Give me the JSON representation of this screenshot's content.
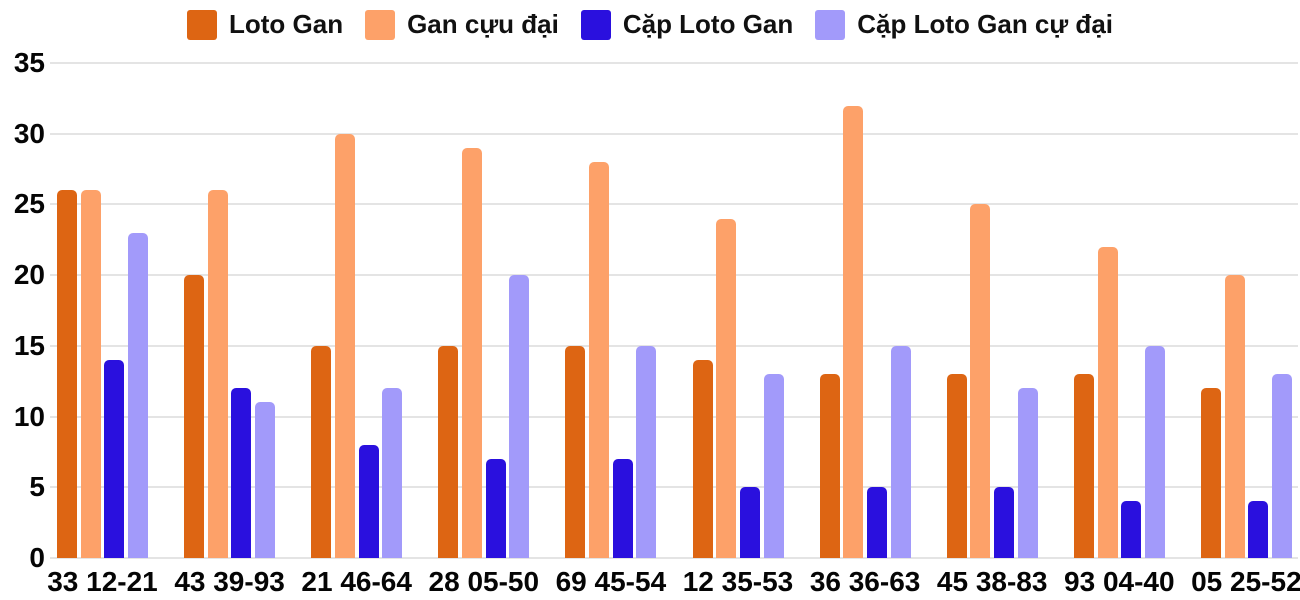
{
  "chart_data": {
    "type": "bar",
    "title": "",
    "xlabel": "",
    "ylabel": "",
    "categories": [
      "33 12-21",
      "43 39-93",
      "21 46-64",
      "28 05-50",
      "69 45-54",
      "12 35-53",
      "36 36-63",
      "45 38-83",
      "93 04-40",
      "05 25-52"
    ],
    "series": [
      {
        "name": "Loto Gan",
        "color": "#DD6513",
        "values": [
          26,
          20,
          15,
          15,
          15,
          14,
          13,
          13,
          13,
          12
        ]
      },
      {
        "name": "Gan cựu đại",
        "color": "#FDA169",
        "values": [
          26,
          26,
          30,
          29,
          28,
          24,
          32,
          25,
          22,
          20
        ]
      },
      {
        "name": "Cặp Loto Gan",
        "color": "#2A10DE",
        "values": [
          14,
          12,
          8,
          7,
          7,
          5,
          5,
          5,
          4,
          4
        ]
      },
      {
        "name": "Cặp Loto Gan cự đại",
        "color": "#A29AFA",
        "values": [
          23,
          11,
          12,
          20,
          15,
          13,
          15,
          12,
          15,
          13
        ]
      }
    ],
    "y_ticks": [
      0,
      5,
      10,
      15,
      20,
      25,
      30,
      35
    ],
    "ylim": [
      0,
      35
    ],
    "grid": true,
    "legend_position": "top",
    "text_color": "#050505",
    "gridline_color": "#e4e4e4",
    "background_color": "#ffffff"
  }
}
